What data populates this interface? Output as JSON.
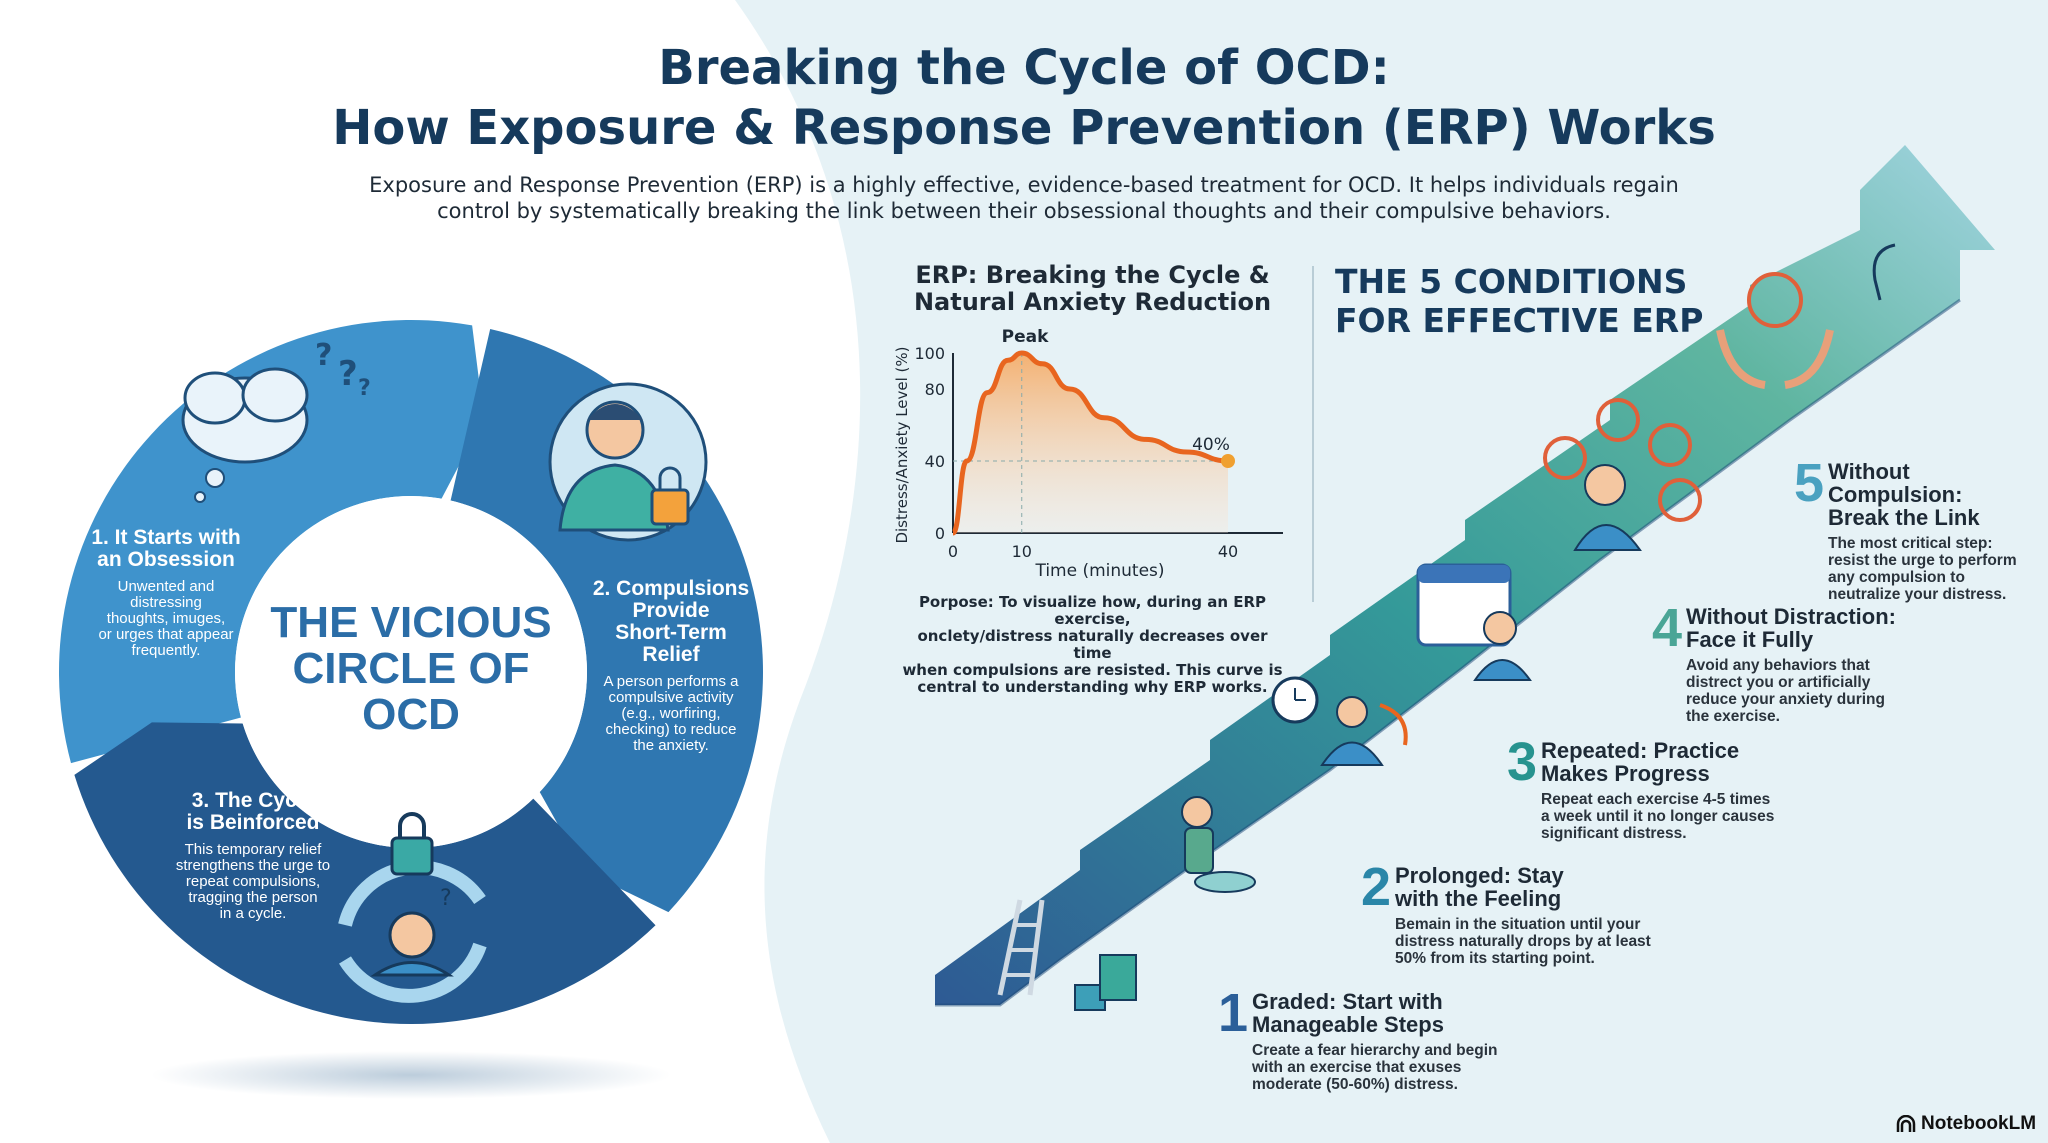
{
  "header": {
    "title_line1": "Breaking the Cycle of OCD:",
    "title_line2": "How Exposure & Response Prevention (ERP) Works",
    "subtitle_line1": "Exposure and Response Prevention (ERP) is a highly effective, evidence-based treatment for OCD. It helps individuals regain",
    "subtitle_line2": "control by systematically breaking the link between their obsessional thoughts and their compulsive behaviors."
  },
  "circle": {
    "center_title": [
      "THE VICIOUS",
      "CIRCLE OF",
      "OCD"
    ],
    "colors": {
      "segment1": "#3f93cc",
      "segment2": "#2f77b1",
      "segment3": "#24598f"
    },
    "stages": [
      {
        "title": [
          "1. It Starts with",
          "an Obsession"
        ],
        "desc": [
          "Unwented and",
          "distressing",
          "thoughts, imuges,",
          "or urges that appear",
          "frequently."
        ],
        "icon": "thought-cloud-icon"
      },
      {
        "title": [
          "2. Compulsions",
          "Provide",
          "Short-Term",
          "Relief"
        ],
        "desc": [
          "A person performs a",
          "compulsive activity",
          "(e.g., worfiring,",
          "checking) to reduce",
          "the anxiety."
        ],
        "icon": "person-padlock-icon"
      },
      {
        "title": [
          "3. The Cycle",
          "is Beinforced"
        ],
        "desc": [
          "This temporary relief",
          "strengthens the urge to",
          "repeat compulsions,",
          "tragging the person",
          "in a cycle."
        ],
        "icon": "cycle-lock-icon"
      }
    ]
  },
  "chart_data": {
    "type": "area",
    "title": "ERP: Breaking the Cycle & Natural Anxiety Reduction",
    "title_lines": [
      "ERP: Breaking the Cycle &",
      "Natural Anxiety Reduction"
    ],
    "xlabel": "Time (minutes)",
    "ylabel": "Distress/Anxiety Level (%)",
    "x_ticks": [
      0,
      10,
      40
    ],
    "y_ticks": [
      0,
      40,
      80,
      100
    ],
    "xlim": [
      0,
      48
    ],
    "ylim": [
      0,
      100
    ],
    "x": [
      0,
      2,
      5,
      8,
      10,
      13,
      17,
      22,
      28,
      34,
      40
    ],
    "y": [
      0,
      40,
      78,
      96,
      100,
      94,
      80,
      64,
      52,
      45,
      40
    ],
    "annotations": [
      {
        "text": "Peak",
        "x": 10,
        "y": 100
      },
      {
        "text": "40%",
        "x": 40,
        "y": 40
      }
    ],
    "grid": false,
    "color": "#e8651f",
    "purpose": [
      "Porpose: To visualize how, during an ERP exercise,",
      "onclety/distress naturally decreases over time",
      "when compulsions are resisted. This curve is",
      "central to understanding why ERP works."
    ]
  },
  "conditions": {
    "heading": [
      "THE 5 CONDITIONS",
      "FOR EFFECTIVE ERP"
    ],
    "items": [
      {
        "num": "1",
        "title": [
          "Graded: Start with",
          "Manageable Steps"
        ],
        "desc": [
          "Create a fear hierarchy and begin",
          "with an exercise that exuses",
          "moderate (50-60%) distress."
        ],
        "color": "#2b5f99"
      },
      {
        "num": "2",
        "title": [
          "Prolonged: Stay",
          "with the Feeling"
        ],
        "desc": [
          "Bemain in the situation until your",
          "distress naturally drops by at least",
          "50% from its starting point."
        ],
        "color": "#2a86a8"
      },
      {
        "num": "3",
        "title": [
          "Repeated: Practice",
          "Makes Progress"
        ],
        "desc": [
          "Repeat each exercise 4-5 times",
          "a week until it no longer causes",
          "significant distress."
        ],
        "color": "#27938f"
      },
      {
        "num": "4",
        "title": [
          "Without Distraction:",
          "Face it Fully"
        ],
        "desc": [
          "Avoid any behaviors that",
          "distrect you or artificially",
          "reduce your anxiety during",
          "the exercise."
        ],
        "color": "#4aa596"
      },
      {
        "num": "5",
        "title": [
          "Without",
          "Compulsion:",
          "Break the Link"
        ],
        "desc": [
          "The most critical step:",
          "resist the urge to perform",
          "any compulsion to",
          "neutralize your distress."
        ],
        "color": "#4aa1c0"
      }
    ]
  },
  "footer": {
    "brand": "NotebookLM",
    "icon": "notebooklm-logo-icon"
  }
}
